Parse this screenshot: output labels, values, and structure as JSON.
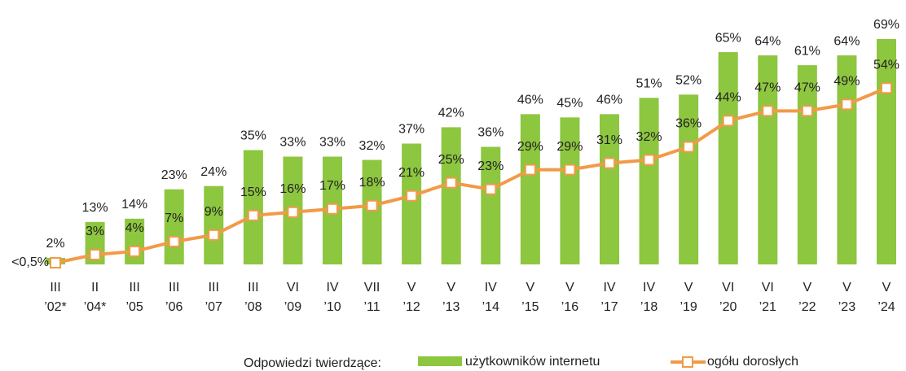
{
  "chart_data": {
    "type": "bar-line",
    "legend_label": "Odpowiedzi twierdzące:",
    "categories": [
      [
        "III",
        "’02*"
      ],
      [
        "II",
        "’04*"
      ],
      [
        "III",
        "’05"
      ],
      [
        "III",
        "’06"
      ],
      [
        "III",
        "’07"
      ],
      [
        "III",
        "’08"
      ],
      [
        "VI",
        "’09"
      ],
      [
        "IV",
        "’10"
      ],
      [
        "VII",
        "’11"
      ],
      [
        "V",
        "’12"
      ],
      [
        "V",
        "’13"
      ],
      [
        "IV",
        "’14"
      ],
      [
        "V",
        "’15"
      ],
      [
        "V",
        "’16"
      ],
      [
        "IV",
        "’17"
      ],
      [
        "IV",
        "’18"
      ],
      [
        "V",
        "’19"
      ],
      [
        "VI",
        "’20"
      ],
      [
        "VI",
        "’21"
      ],
      [
        "V",
        "’22"
      ],
      [
        "V",
        "’23"
      ],
      [
        "V",
        "’24"
      ]
    ],
    "series": [
      {
        "name": "użytkowników internetu",
        "type": "bar",
        "color": "#8dc63f",
        "values": [
          2,
          13,
          14,
          23,
          24,
          35,
          33,
          33,
          32,
          37,
          42,
          36,
          46,
          45,
          46,
          51,
          52,
          65,
          64,
          61,
          64,
          69
        ],
        "value_labels": [
          "2%",
          "13%",
          "14%",
          "23%",
          "24%",
          "35%",
          "33%",
          "33%",
          "32%",
          "37%",
          "42%",
          "36%",
          "46%",
          "45%",
          "46%",
          "51%",
          "52%",
          "65%",
          "64%",
          "61%",
          "64%",
          "69%"
        ]
      },
      {
        "name": "ogółu dorosłych",
        "type": "line",
        "color": "#f29a48",
        "values": [
          0.5,
          3,
          4,
          7,
          9,
          15,
          16,
          17,
          18,
          21,
          25,
          23,
          29,
          29,
          31,
          32,
          36,
          44,
          47,
          47,
          49,
          54
        ],
        "value_labels": [
          "<0,5%",
          "3%",
          "4%",
          "7%",
          "9%",
          "15%",
          "16%",
          "17%",
          "18%",
          "21%",
          "25%",
          "23%",
          "29%",
          "29%",
          "31%",
          "32%",
          "36%",
          "44%",
          "47%",
          "47%",
          "49%",
          "54%"
        ]
      }
    ],
    "ylim": [
      0,
      70
    ]
  }
}
